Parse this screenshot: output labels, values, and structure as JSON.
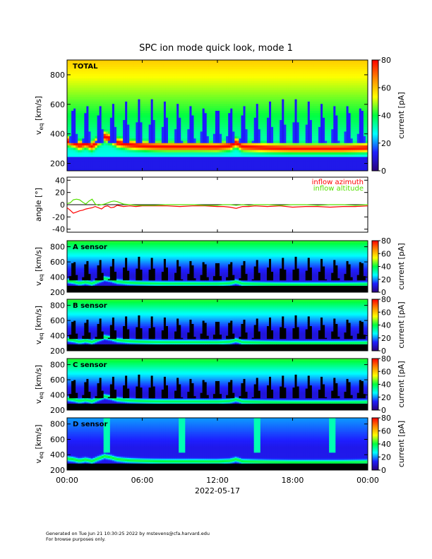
{
  "chart_data": {
    "type": "heatmap",
    "title": "SPC ion mode quick look, mode 1",
    "x": {
      "ticks": [
        "00:00",
        "06:00",
        "12:00",
        "18:00",
        "00:00"
      ],
      "tick_hours": [
        0,
        6,
        12,
        18,
        24
      ],
      "range_hours": [
        0,
        24
      ],
      "label": "2022-05-17"
    },
    "colorbar": {
      "label": "current [pA]",
      "range": [
        0,
        80
      ],
      "stops": [
        "#2a007a",
        "#1e1eff",
        "#00ffff",
        "#00ff40",
        "#ffff00",
        "#ff8800",
        "#ff0000"
      ]
    },
    "spectrograms": [
      {
        "label": "TOTAL",
        "ylabel": "v_eq [km/s]",
        "ylim": [
          150,
          900
        ],
        "yticks": [
          200,
          400,
          600,
          800
        ],
        "cbar_ticks": [
          0,
          20,
          40,
          60,
          80
        ],
        "mode": "total"
      },
      {
        "label": "A sensor",
        "ylabel": "v_eq [km/s]",
        "ylim": [
          200,
          880
        ],
        "yticks": [
          200,
          400,
          600,
          800
        ],
        "cbar_ticks": [
          0,
          20,
          40,
          60,
          80
        ],
        "mode": "sensor"
      },
      {
        "label": "B sensor",
        "ylabel": "v_eq [km/s]",
        "ylim": [
          200,
          880
        ],
        "yticks": [
          200,
          400,
          600,
          800
        ],
        "cbar_ticks": [
          0,
          20,
          40,
          60,
          80
        ],
        "mode": "sensor"
      },
      {
        "label": "C sensor",
        "ylabel": "v_eq [km/s]",
        "ylim": [
          200,
          880
        ],
        "yticks": [
          200,
          400,
          600,
          800
        ],
        "cbar_ticks": [
          0,
          20,
          40,
          60,
          80
        ],
        "mode": "sensor"
      },
      {
        "label": "D sensor",
        "ylabel": "v_eq [km/s]",
        "ylim": [
          200,
          880
        ],
        "yticks": [
          200,
          400,
          600,
          800
        ],
        "cbar_ticks": [
          0,
          20,
          40,
          60,
          80
        ],
        "mode": "sensor_d"
      }
    ],
    "speed_trace": {
      "hours": [
        0,
        0.5,
        1.0,
        1.5,
        2.0,
        2.5,
        3.0,
        3.5,
        4.0,
        5,
        6,
        7,
        8,
        10,
        12,
        13,
        13.5,
        14,
        15,
        16,
        18,
        20,
        22,
        24
      ],
      "v_kms": [
        350,
        340,
        320,
        335,
        315,
        350,
        380,
        365,
        340,
        325,
        318,
        314,
        312,
        312,
        310,
        318,
        340,
        312,
        308,
        304,
        300,
        300,
        300,
        305
      ]
    },
    "angle_panel": {
      "ylabel": "angle [°]",
      "ylim": [
        -45,
        45
      ],
      "yticks": [
        -40,
        -20,
        0,
        20,
        40
      ],
      "grid_zero_line": true,
      "legend_position": "top-right",
      "series": [
        {
          "name": "inflow azimuth",
          "color": "#ff0000",
          "x_hours": [
            0,
            0.25,
            0.5,
            0.75,
            1.0,
            1.25,
            1.5,
            1.75,
            2.0,
            2.25,
            2.5,
            2.75,
            3.0,
            3.25,
            3.5,
            3.75,
            4.0,
            4.5,
            5,
            5.5,
            6,
            7,
            8,
            9,
            10,
            11,
            12,
            12.5,
            13,
            13.5,
            14,
            14.5,
            15,
            16,
            17,
            18,
            19,
            20,
            21,
            22,
            23,
            24
          ],
          "y": [
            -5,
            -9,
            -14,
            -12,
            -10,
            -9,
            -7,
            -6,
            -5,
            -3,
            -5,
            -7,
            -3,
            -2,
            -5,
            -4,
            -1,
            -3,
            -2,
            -3,
            -2,
            -2,
            -2,
            -3,
            -2,
            -2,
            -3,
            -3,
            -4,
            -6,
            -3,
            -3,
            -2,
            -3,
            -2,
            -4,
            -3,
            -3,
            -4,
            -3,
            -3,
            -2
          ]
        },
        {
          "name": "inflow altitude",
          "color": "#55e000",
          "x_hours": [
            0,
            0.25,
            0.5,
            0.75,
            1.0,
            1.25,
            1.5,
            1.75,
            2.0,
            2.25,
            2.5,
            2.75,
            3.0,
            3.25,
            3.5,
            3.75,
            4.0,
            4.5,
            5,
            5.5,
            6,
            7,
            8,
            9,
            10,
            11,
            12,
            12.5,
            13,
            13.5,
            14,
            14.5,
            15,
            16,
            17,
            18,
            19,
            20,
            21,
            22,
            23,
            24
          ],
          "y": [
            2,
            3,
            8,
            9,
            8,
            4,
            1,
            6,
            9,
            1,
            -1,
            0,
            1,
            3,
            5,
            6,
            5,
            1,
            0,
            -1,
            -1,
            -1,
            0,
            0,
            0,
            -1,
            -1,
            0,
            0,
            -1,
            0,
            -1,
            0,
            0,
            -1,
            0,
            0,
            -1,
            0,
            0,
            -1,
            0
          ]
        }
      ]
    }
  },
  "footer": {
    "line1": "Generated on Tue Jun 21 10:30:25 2022 by mstevens@cfa.harvard.edu",
    "line2": "For browse purposes only."
  }
}
